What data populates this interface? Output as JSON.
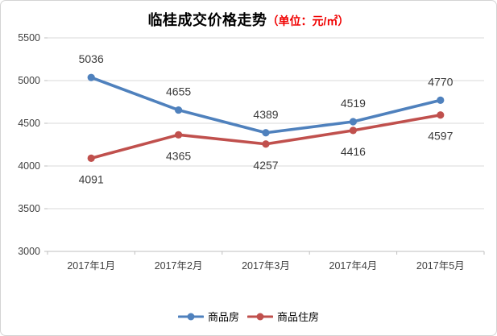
{
  "title": {
    "main": "临桂成交价格走势",
    "unit": "（单位：元/㎡）",
    "unit_color": "#f00000"
  },
  "chart_data": {
    "type": "line",
    "categories": [
      "2017年1月",
      "2017年2月",
      "2017年3月",
      "2017年4月",
      "2017年5月"
    ],
    "series": [
      {
        "name": "商品房",
        "color": "#4F81BD",
        "values": [
          5036,
          4655,
          4389,
          4519,
          4770
        ],
        "data_labels": [
          "5036",
          "4655",
          "4389",
          "4519",
          "4770"
        ],
        "label_position": "above"
      },
      {
        "name": "商品住房",
        "color": "#C0504D",
        "values": [
          4091,
          4365,
          4257,
          4416,
          4597
        ],
        "data_labels": [
          "4091",
          "4365",
          "4257",
          "4416",
          "4597"
        ],
        "label_position": "below"
      }
    ],
    "yticks": [
      "3000",
      "3500",
      "4000",
      "4500",
      "5000",
      "5500"
    ],
    "ylim": [
      3000,
      5500
    ],
    "ytick_interval": 500,
    "grid": true,
    "legend_position": "bottom",
    "xlabel": "",
    "ylabel": ""
  },
  "style": {
    "gridline_color": "#d9d9d9",
    "axis_color": "#bfbfbf",
    "tick_label_color": "#404040",
    "data_label_color": "#3a3a3a"
  }
}
